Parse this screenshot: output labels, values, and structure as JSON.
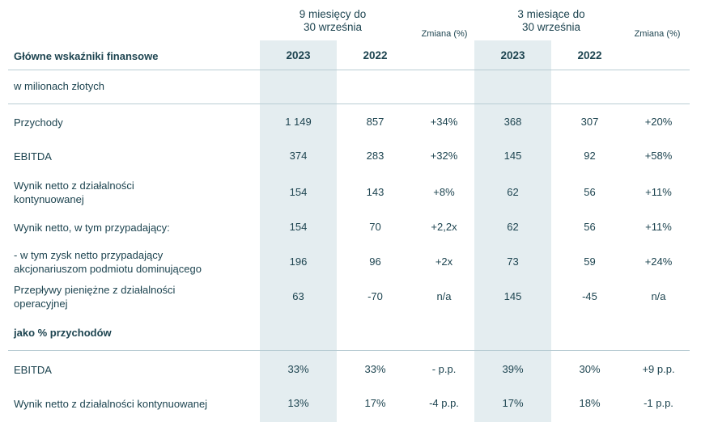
{
  "header": {
    "group1": [
      "9 miesięcy do",
      "30 września"
    ],
    "group2": [
      "3 miesiące do",
      "30 września"
    ],
    "change_label": "Zmiana (%)",
    "title": "Główne wskaźniki finansowe",
    "years": [
      "2023",
      "2022",
      "2023",
      "2022"
    ]
  },
  "unit_label": "w milionach złotych",
  "rows": [
    {
      "label": [
        "Przychody"
      ],
      "values": [
        "1 149",
        "857",
        "+34%",
        "368",
        "307",
        "+20%"
      ]
    },
    {
      "label": [
        "EBITDA"
      ],
      "values": [
        "374",
        "283",
        "+32%",
        "145",
        "92",
        "+58%"
      ]
    },
    {
      "label": [
        "Wynik netto z działalności",
        "kontynuowanej"
      ],
      "values": [
        "154",
        "143",
        "+8%",
        "62",
        "56",
        "+11%"
      ]
    },
    {
      "label": [
        "Wynik netto, w tym przypadający:"
      ],
      "values": [
        "154",
        "70",
        "+2,2x",
        "62",
        "56",
        "+11%"
      ]
    },
    {
      "label": [
        "- w tym zysk netto przypadający",
        "akcjonariuszom podmiotu dominującego"
      ],
      "values": [
        "196",
        "96",
        "+2x",
        "73",
        "59",
        "+24%"
      ]
    },
    {
      "label": [
        "Przepływy pieniężne z działalności",
        "operacyjnej"
      ],
      "values": [
        "63",
        "-70",
        "n/a",
        "145",
        "-45",
        "n/a"
      ]
    }
  ],
  "section2": {
    "title": "jako % przychodów",
    "rows": [
      {
        "label": "EBITDA",
        "values": [
          "33%",
          "33%",
          "- p.p.",
          "39%",
          "30%",
          "+9 p.p."
        ]
      },
      {
        "label": "Wynik netto z działalności kontynuowanej",
        "values": [
          "13%",
          "17%",
          "-4 p.p.",
          "17%",
          "18%",
          "-1 p.p."
        ]
      }
    ]
  }
}
